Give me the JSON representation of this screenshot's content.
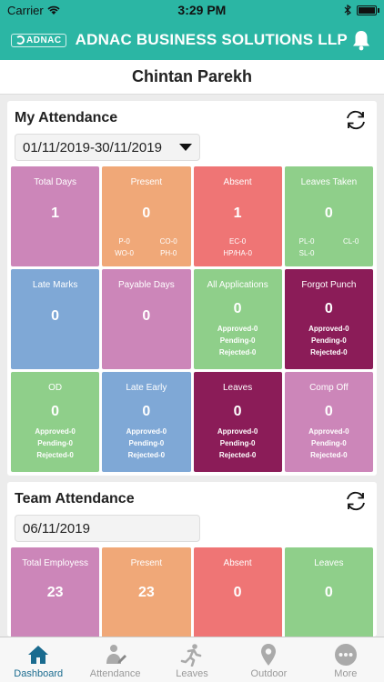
{
  "status": {
    "carrier": "Carrier",
    "time": "3:29 PM"
  },
  "header": {
    "logo_text": "ADNAC",
    "title": "ADNAC BUSINESS SOLUTIONS LLP"
  },
  "user": {
    "name": "Chintan Parekh"
  },
  "my_attendance": {
    "title": "My Attendance",
    "date_range": "01/11/2019-30/11/2019",
    "tiles": [
      {
        "label": "Total Days",
        "value": "1"
      },
      {
        "label": "Present",
        "value": "0",
        "sub": [
          "P-0",
          "CO-0",
          "WO-0",
          "PH-0"
        ]
      },
      {
        "label": "Absent",
        "value": "1",
        "sub": [
          "EC-0",
          "HP/HA-0"
        ]
      },
      {
        "label": "Leaves Taken",
        "value": "0",
        "sub": [
          "PL-0",
          "CL-0",
          "SL-0"
        ]
      },
      {
        "label": "Late Marks",
        "value": "0"
      },
      {
        "label": "Payable Days",
        "value": "0"
      },
      {
        "label": "All Applications",
        "value": "0",
        "sub": [
          "Approved-0",
          "Pending-0",
          "Rejected-0"
        ]
      },
      {
        "label": "Forgot Punch",
        "value": "0",
        "sub": [
          "Approved-0",
          "Pending-0",
          "Rejected-0"
        ]
      },
      {
        "label": "OD",
        "value": "0",
        "sub": [
          "Approved-0",
          "Pending-0",
          "Rejected-0"
        ]
      },
      {
        "label": "Late Early",
        "value": "0",
        "sub": [
          "Approved-0",
          "Pending-0",
          "Rejected-0"
        ]
      },
      {
        "label": "Leaves",
        "value": "0",
        "sub": [
          "Approved-0",
          "Pending-0",
          "Rejected-0"
        ]
      },
      {
        "label": "Comp Off",
        "value": "0",
        "sub": [
          "Approved-0",
          "Pending-0",
          "Rejected-0"
        ]
      }
    ]
  },
  "team_attendance": {
    "title": "Team Attendance",
    "date": "06/11/2019",
    "tiles": [
      {
        "label": "Total Employess",
        "value": "23"
      },
      {
        "label": "Present",
        "value": "23"
      },
      {
        "label": "Absent",
        "value": "0"
      },
      {
        "label": "Leaves",
        "value": "0"
      }
    ]
  },
  "tabs": [
    {
      "label": "Dashboard",
      "icon": "home-icon",
      "active": true
    },
    {
      "label": "Attendance",
      "icon": "attendance-icon"
    },
    {
      "label": "Leaves",
      "icon": "running-icon"
    },
    {
      "label": "Outdoor",
      "icon": "location-pin-icon"
    },
    {
      "label": "More",
      "icon": "more-icon"
    }
  ],
  "colors": {
    "brand": "#2bb6a4",
    "pink": "#cc86b9",
    "orange": "#f0a878",
    "red": "#ef7575",
    "green": "#8fcf8a",
    "blue": "#7fa8d6",
    "maroon": "#8b1c58",
    "active_tab": "#1a6b8f"
  }
}
